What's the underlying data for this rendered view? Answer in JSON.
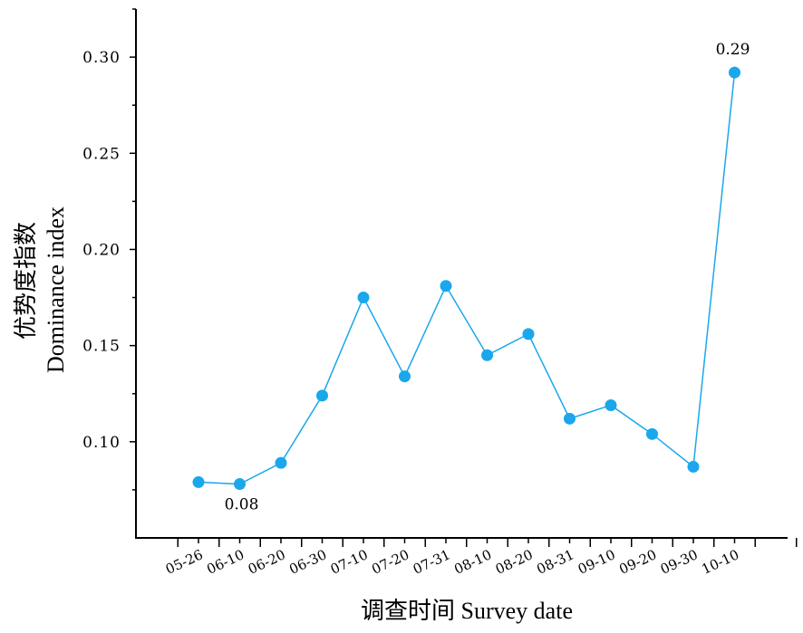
{
  "chart_data": {
    "type": "line",
    "xlabel": "调查时间  Survey date",
    "ylabel_cn": "优势度指数",
    "ylabel_en": "Dominance index",
    "categories": [
      "05-26",
      "06-10",
      "06-20",
      "06-30",
      "07-10",
      "07-20",
      "07-31",
      "08-10",
      "08-20",
      "08-31",
      "09-10",
      "09-20",
      "09-30",
      "10-10"
    ],
    "series": [
      {
        "values": [
          0.079,
          0.078,
          0.089,
          0.124,
          0.175,
          0.134,
          0.181,
          0.145,
          0.156,
          0.112,
          0.119,
          0.104,
          0.087,
          0.292
        ]
      }
    ],
    "ylim": [
      0.05,
      0.325
    ],
    "yticks": [
      0.1,
      0.15,
      0.2,
      0.25,
      0.3
    ],
    "ytick_labels": [
      "0.10",
      "0.15",
      "0.20",
      "0.25",
      "0.30"
    ],
    "annotations": [
      {
        "index": 1,
        "text": "0.08",
        "position": "below"
      },
      {
        "index": 13,
        "text": "0.29",
        "position": "above"
      }
    ],
    "grid": false,
    "colors": {
      "series": "#1aa7ec",
      "axis": "#000000"
    }
  }
}
